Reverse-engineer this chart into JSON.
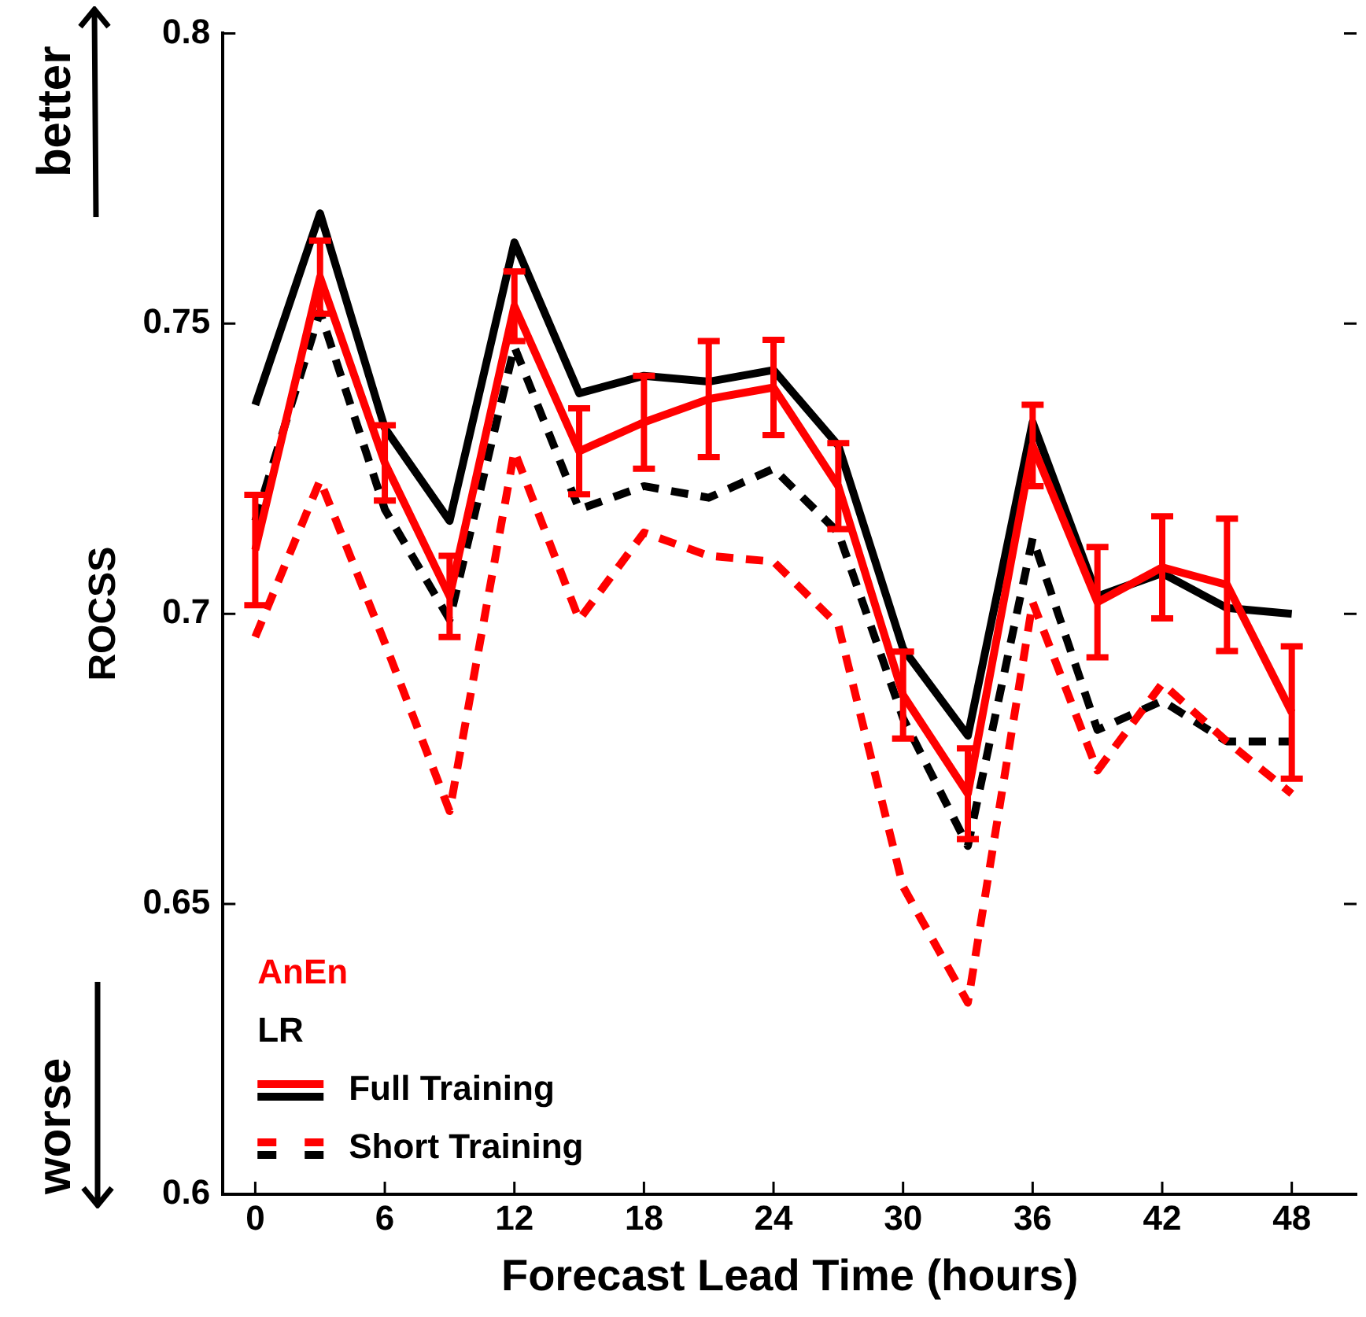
{
  "chart_data": {
    "type": "line",
    "xlabel": "Forecast Lead Time (hours)",
    "ylabel": "ROCSS",
    "x": [
      0,
      3,
      6,
      9,
      12,
      15,
      18,
      21,
      24,
      27,
      30,
      33,
      36,
      39,
      42,
      45,
      48
    ],
    "xlim": [
      -1.5,
      51
    ],
    "xticks": [
      0,
      6,
      12,
      18,
      24,
      30,
      36,
      42,
      48
    ],
    "ylim": [
      0.6,
      0.8
    ],
    "yticks": [
      0.6,
      0.65,
      0.7,
      0.75,
      0.8
    ],
    "marker": "none",
    "series": [
      {
        "color": "#ff0000",
        "line_style": "solid",
        "values": [
          0.711,
          0.758,
          0.726,
          0.703,
          0.753,
          0.728,
          0.733,
          0.737,
          0.739,
          0.722,
          0.686,
          0.669,
          0.729,
          0.702,
          0.708,
          0.705,
          0.683
        ],
        "errors": [
          0.0095,
          0.0063,
          0.0065,
          0.007,
          0.006,
          0.0074,
          0.008,
          0.01,
          0.0082,
          0.0074,
          0.0075,
          0.0078,
          0.007,
          0.0095,
          0.0088,
          0.0114,
          0.0114
        ]
      },
      {
        "color": "#000000",
        "line_style": "solid",
        "values": [
          0.736,
          0.769,
          0.732,
          0.716,
          0.764,
          0.738,
          0.741,
          0.74,
          0.742,
          0.729,
          0.694,
          0.679,
          0.733,
          0.703,
          0.707,
          0.701,
          0.7
        ]
      },
      {
        "color": "#ff0000",
        "line_style": "dashed",
        "values": [
          0.696,
          0.723,
          0.695,
          0.666,
          0.728,
          0.699,
          0.714,
          0.71,
          0.709,
          0.698,
          0.653,
          0.633,
          0.702,
          0.673,
          0.688,
          0.678,
          0.669
        ]
      },
      {
        "color": "#000000",
        "line_style": "dashed",
        "values": [
          0.716,
          0.752,
          0.718,
          0.699,
          0.746,
          0.718,
          0.722,
          0.72,
          0.725,
          0.714,
          0.682,
          0.66,
          0.713,
          0.68,
          0.685,
          0.678,
          0.678
        ]
      }
    ],
    "annotations": [
      "better",
      "worse",
      "AnEn",
      "LR",
      "Full Training",
      "Short Training"
    ]
  }
}
